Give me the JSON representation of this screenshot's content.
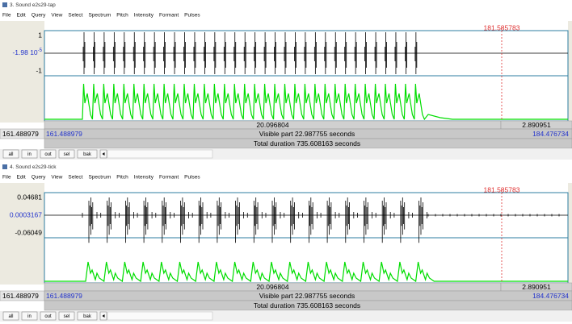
{
  "windows": [
    {
      "title": "3. Sound e2s29-tap",
      "menu": [
        "File",
        "Edit",
        "Query",
        "View",
        "Select",
        "Spectrum",
        "Pitch",
        "Intensity",
        "Formant",
        "Pulses"
      ],
      "amplitude_labels": {
        "top": "1",
        "middle": {
          "base": "-1.98 10",
          "exponent": "-5"
        },
        "bottom": "-1"
      },
      "cursor_time": "181.585783",
      "segment_before": "20.096804",
      "segment_after": "2.890951",
      "window_start": "161.488979",
      "visible_start": "161.488979",
      "visible_part": "Visible part 22.987755 seconds",
      "visible_end": "184.476734",
      "total_duration": "Total duration 735.608163 seconds",
      "buttons": [
        "all",
        "in",
        "out",
        "sel",
        "bak"
      ]
    },
    {
      "title": "4. Sound e2s29-tick",
      "menu": [
        "File",
        "Edit",
        "Query",
        "View",
        "Select",
        "Spectrum",
        "Pitch",
        "Intensity",
        "Formant",
        "Pulses"
      ],
      "amplitude_labels": {
        "top": "0.04681",
        "middle": "0.0003167",
        "bottom": "-0.06049"
      },
      "cursor_time": "181.585783",
      "segment_before": "20.096804",
      "segment_after": "2.890951",
      "window_start": "161.488979",
      "visible_start": "161.488979",
      "visible_part": "Visible part 22.987755 seconds",
      "visible_end": "184.476734",
      "total_duration": "Total duration 735.608163 seconds",
      "buttons": [
        "all",
        "in",
        "out",
        "sel",
        "bak"
      ]
    }
  ]
}
